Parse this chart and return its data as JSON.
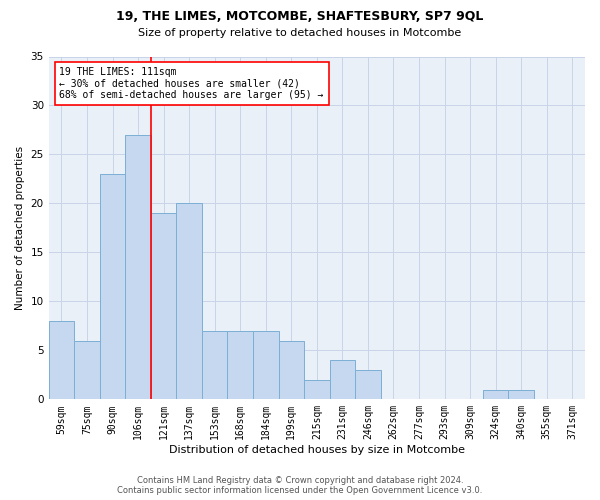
{
  "title": "19, THE LIMES, MOTCOMBE, SHAFTESBURY, SP7 9QL",
  "subtitle": "Size of property relative to detached houses in Motcombe",
  "xlabel": "Distribution of detached houses by size in Motcombe",
  "ylabel": "Number of detached properties",
  "bar_labels": [
    "59sqm",
    "75sqm",
    "90sqm",
    "106sqm",
    "121sqm",
    "137sqm",
    "153sqm",
    "168sqm",
    "184sqm",
    "199sqm",
    "215sqm",
    "231sqm",
    "246sqm",
    "262sqm",
    "277sqm",
    "293sqm",
    "309sqm",
    "324sqm",
    "340sqm",
    "355sqm",
    "371sqm"
  ],
  "bar_values": [
    8,
    6,
    23,
    27,
    19,
    20,
    7,
    7,
    7,
    6,
    2,
    4,
    3,
    0,
    0,
    0,
    0,
    1,
    1,
    0,
    0
  ],
  "bar_color": "#c5d8f0",
  "bar_edge_color": "#7bafd4",
  "vline_color": "red",
  "vline_x": 3.5,
  "annotation_text": "19 THE LIMES: 111sqm\n← 30% of detached houses are smaller (42)\n68% of semi-detached houses are larger (95) →",
  "annotation_box_color": "white",
  "annotation_box_edge": "red",
  "ylim": [
    0,
    35
  ],
  "yticks": [
    0,
    5,
    10,
    15,
    20,
    25,
    30,
    35
  ],
  "grid_color": "#c8d4e8",
  "background_color": "#eaf0f8",
  "footer_line1": "Contains HM Land Registry data © Crown copyright and database right 2024.",
  "footer_line2": "Contains public sector information licensed under the Open Government Licence v3.0.",
  "title_fontsize": 9,
  "subtitle_fontsize": 8,
  "ylabel_fontsize": 7.5,
  "xlabel_fontsize": 8,
  "tick_fontsize": 7,
  "annotation_fontsize": 7,
  "footer_fontsize": 6
}
